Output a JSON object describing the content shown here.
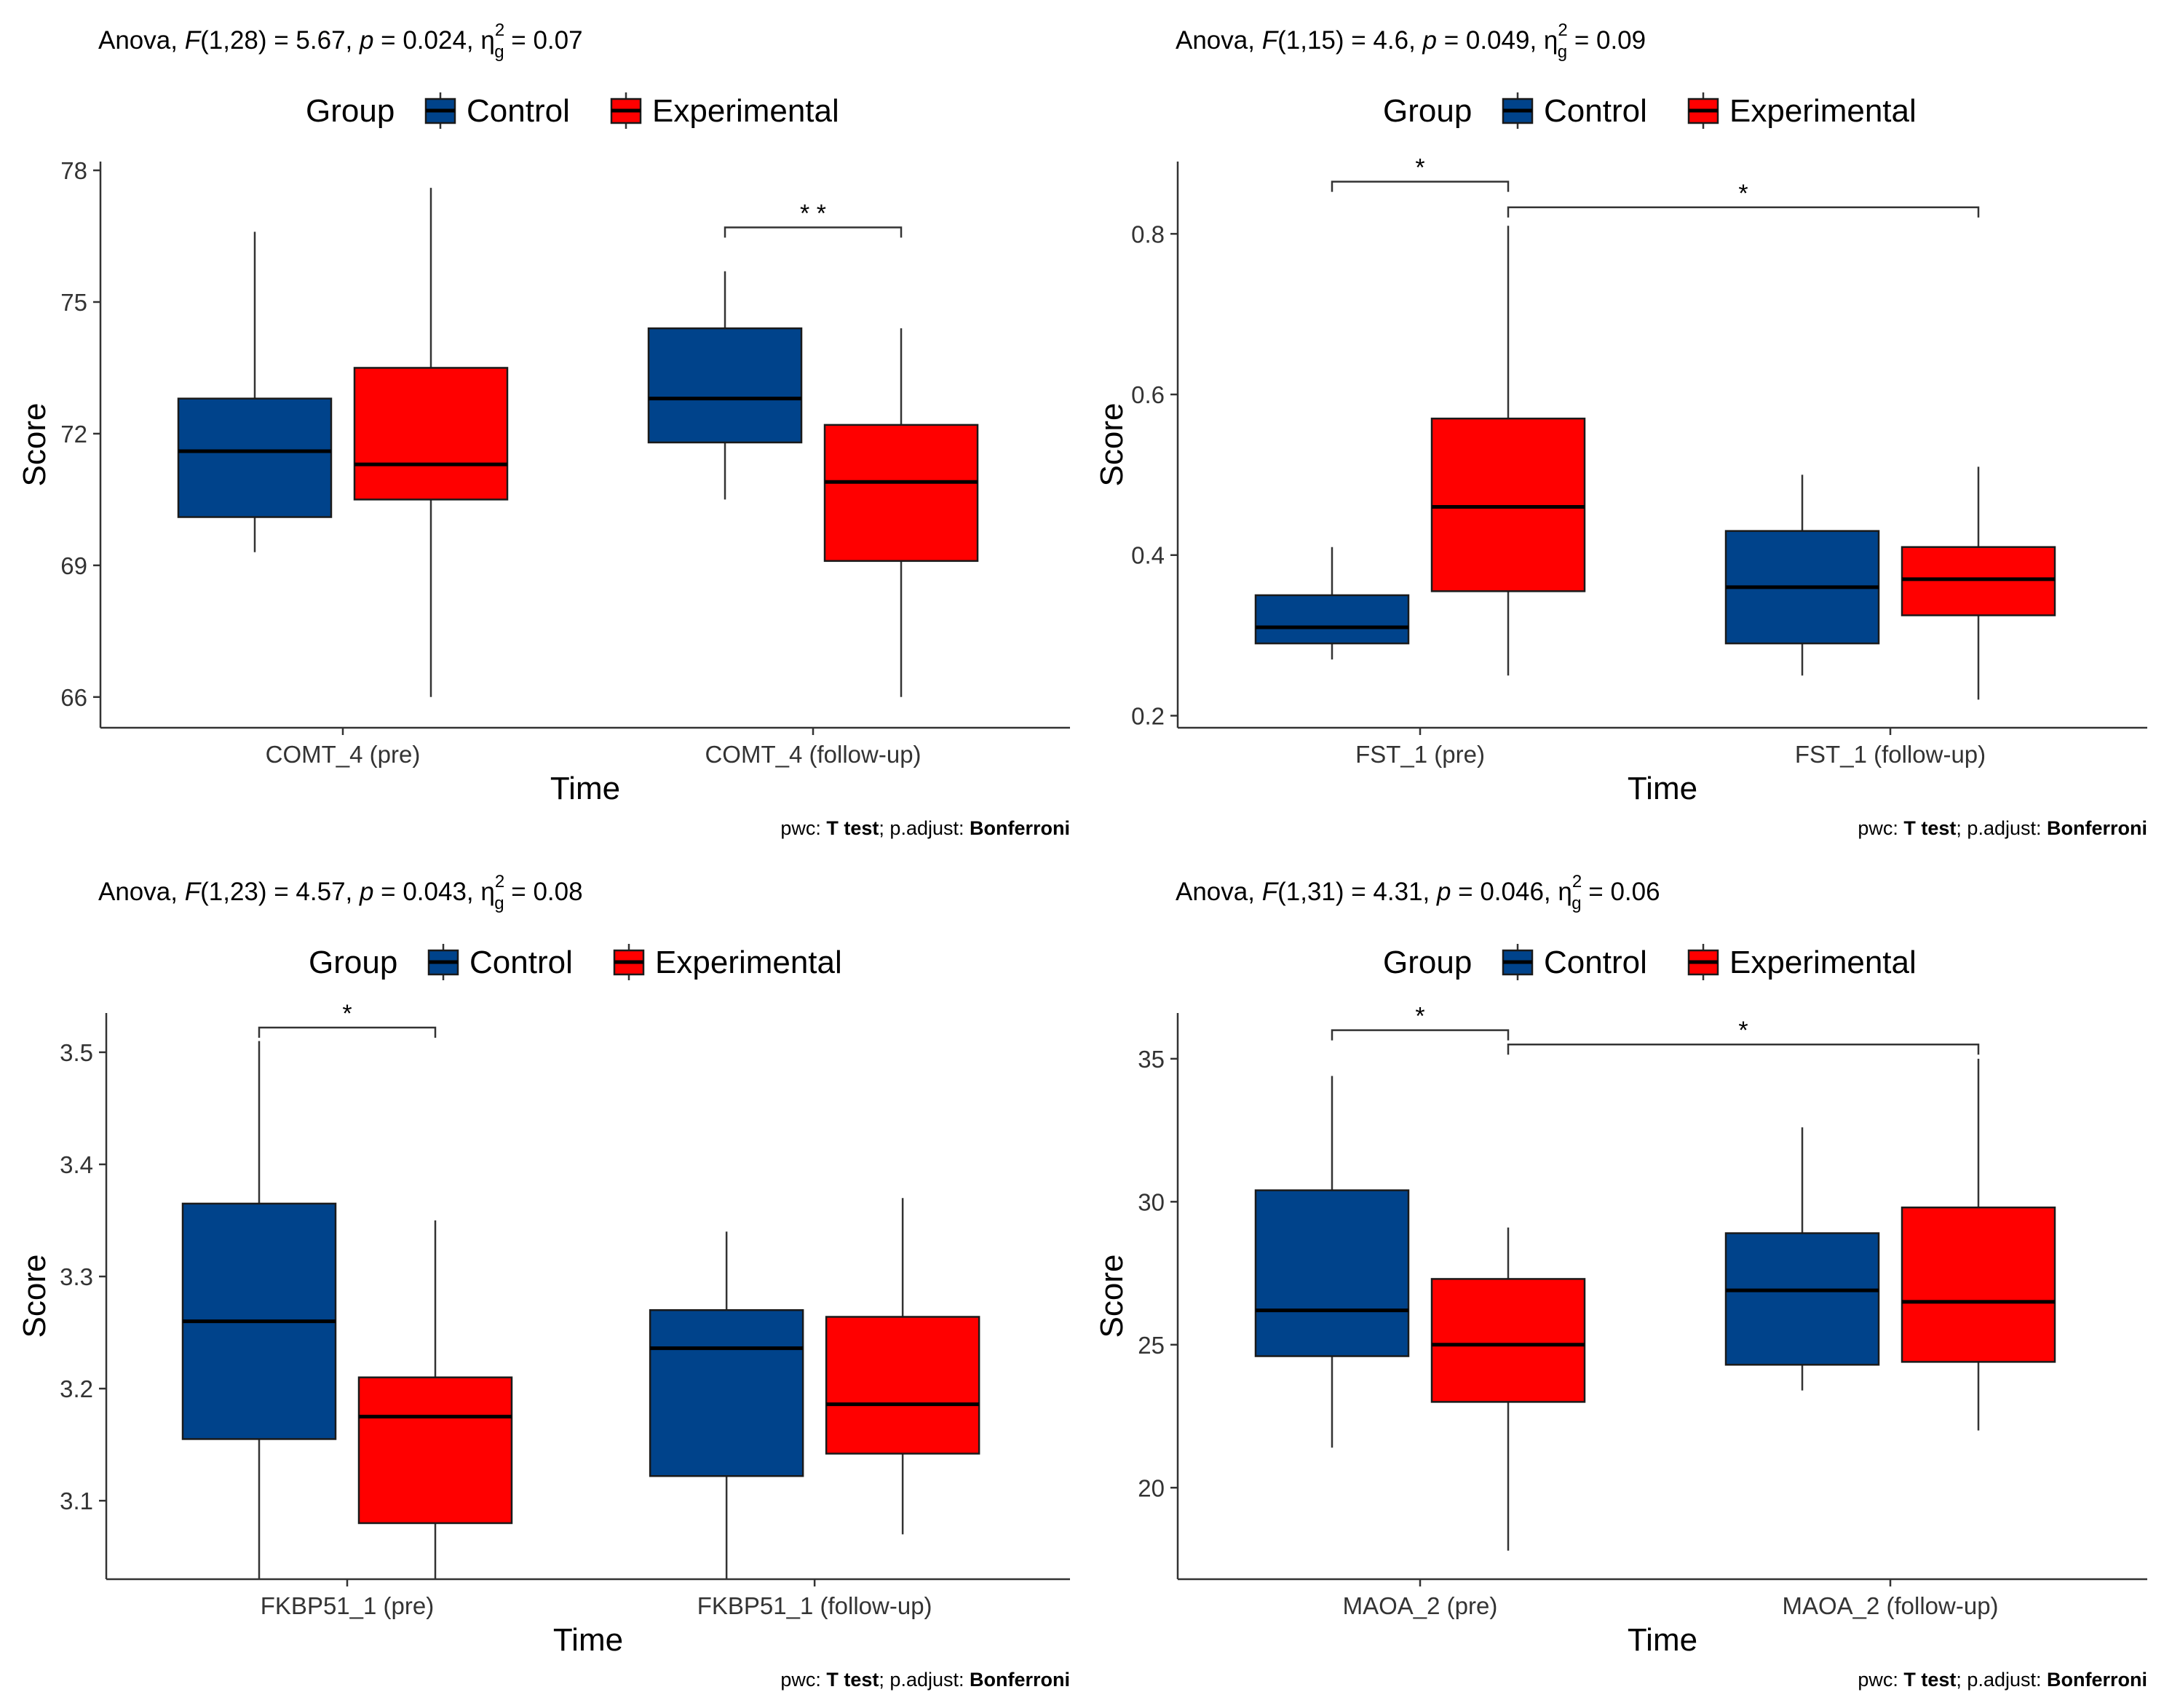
{
  "chart_data": [
    {
      "type": "boxplot",
      "anova_text": {
        "prefix": "Anova,",
        "stat": "F",
        "df": "(1,28) = 5.67,",
        "p_sym": "p",
        "p_val": "= 0.024,",
        "eta": "η",
        "eta_sup": "2",
        "eta_sub": "g",
        "eta_val": "= 0.07"
      },
      "legend": {
        "title": "Group",
        "labels": [
          "Control",
          "Experimental"
        ]
      },
      "xlabel": "Time",
      "ylabel": "Score",
      "categories": [
        "COMT_4 (pre)",
        "COMT_4 (follow-up)"
      ],
      "ylim": [
        65.3,
        78.2
      ],
      "yticks": [
        66,
        69,
        72,
        75,
        78
      ],
      "ytick_labels": [
        "66",
        "69",
        "72",
        "75",
        "78"
      ],
      "series": [
        {
          "name": "Control",
          "boxes": [
            {
              "min": 69.3,
              "q1": 70.1,
              "median": 71.6,
              "q3": 72.8,
              "max": 76.6
            },
            {
              "min": 70.5,
              "q1": 71.8,
              "median": 72.8,
              "q3": 74.4,
              "max": 75.7
            }
          ]
        },
        {
          "name": "Experimental",
          "boxes": [
            {
              "min": 66.0,
              "q1": 70.5,
              "median": 71.3,
              "q3": 73.5,
              "max": 77.6
            },
            {
              "min": 66.0,
              "q1": 69.1,
              "median": 70.9,
              "q3": 72.2,
              "max": 74.4
            }
          ]
        }
      ],
      "brackets": [
        {
          "label": "* *",
          "from": [
            1,
            0
          ],
          "to": [
            1,
            1
          ],
          "y": 76.7
        }
      ],
      "caption": {
        "pwc": "pwc:",
        "test": "T test",
        "sep": "; p.adjust:",
        "adjust": "Bonferroni"
      }
    },
    {
      "type": "boxplot",
      "anova_text": {
        "prefix": "Anova,",
        "stat": "F",
        "df": "(1,15) = 4.6,",
        "p_sym": "p",
        "p_val": "= 0.049,",
        "eta": "η",
        "eta_sup": "2",
        "eta_sub": "g",
        "eta_val": "= 0.09"
      },
      "legend": {
        "title": "Group",
        "labels": [
          "Control",
          "Experimental"
        ]
      },
      "xlabel": "Time",
      "ylabel": "Score",
      "categories": [
        "FST_1 (pre)",
        "FST_1 (follow-up)"
      ],
      "ylim": [
        0.185,
        0.89
      ],
      "yticks": [
        0.2,
        0.4,
        0.6,
        0.8
      ],
      "ytick_labels": [
        "0.2",
        "0.4",
        "0.6",
        "0.8"
      ],
      "series": [
        {
          "name": "Control",
          "boxes": [
            {
              "min": 0.27,
              "q1": 0.29,
              "median": 0.31,
              "q3": 0.35,
              "max": 0.41
            },
            {
              "min": 0.25,
              "q1": 0.29,
              "median": 0.36,
              "q3": 0.43,
              "max": 0.5
            }
          ]
        },
        {
          "name": "Experimental",
          "boxes": [
            {
              "min": 0.25,
              "q1": 0.355,
              "median": 0.46,
              "q3": 0.57,
              "max": 0.81
            },
            {
              "min": 0.22,
              "q1": 0.325,
              "median": 0.37,
              "q3": 0.41,
              "max": 0.51
            }
          ]
        }
      ],
      "brackets": [
        {
          "label": "*",
          "from": [
            0,
            0
          ],
          "to": [
            0,
            1
          ],
          "y": 0.865
        },
        {
          "label": "*",
          "from": [
            0,
            1
          ],
          "to": [
            1,
            1
          ],
          "y": 0.833
        }
      ],
      "caption": {
        "pwc": "pwc:",
        "test": "T test",
        "sep": "; p.adjust:",
        "adjust": "Bonferroni"
      }
    },
    {
      "type": "boxplot",
      "anova_text": {
        "prefix": "Anova,",
        "stat": "F",
        "df": "(1,23) = 4.57,",
        "p_sym": "p",
        "p_val": "= 0.043,",
        "eta": "η",
        "eta_sup": "2",
        "eta_sub": "g",
        "eta_val": "= 0.08"
      },
      "legend": {
        "title": "Group",
        "labels": [
          "Control",
          "Experimental"
        ]
      },
      "xlabel": "Time",
      "ylabel": "Score",
      "categories": [
        "FKBP51_1 (pre)",
        "FKBP51_1 (follow-up)"
      ],
      "ylim": [
        3.03,
        3.535
      ],
      "yticks": [
        3.1,
        3.2,
        3.3,
        3.4,
        3.5
      ],
      "ytick_labels": [
        "3.1",
        "3.2",
        "3.3",
        "3.4",
        "3.5"
      ],
      "series": [
        {
          "name": "Control",
          "boxes": [
            {
              "min": 3.03,
              "q1": 3.155,
              "median": 3.26,
              "q3": 3.365,
              "max": 3.51
            },
            {
              "min": 3.03,
              "q1": 3.122,
              "median": 3.236,
              "q3": 3.27,
              "max": 3.34
            }
          ]
        },
        {
          "name": "Experimental",
          "boxes": [
            {
              "min": 3.03,
              "q1": 3.08,
              "median": 3.175,
              "q3": 3.21,
              "max": 3.35
            },
            {
              "min": 3.07,
              "q1": 3.142,
              "median": 3.186,
              "q3": 3.264,
              "max": 3.37
            }
          ]
        }
      ],
      "brackets": [
        {
          "label": "*",
          "from": [
            0,
            0
          ],
          "to": [
            0,
            1
          ],
          "y": 3.522
        }
      ],
      "caption": {
        "pwc": "pwc:",
        "test": "T test",
        "sep": "; p.adjust:",
        "adjust": "Bonferroni"
      }
    },
    {
      "type": "boxplot",
      "anova_text": {
        "prefix": "Anova,",
        "stat": "F",
        "df": "(1,31) = 4.31,",
        "p_sym": "p",
        "p_val": "= 0.046,",
        "eta": "η",
        "eta_sup": "2",
        "eta_sub": "g",
        "eta_val": "= 0.06"
      },
      "legend": {
        "title": "Group",
        "labels": [
          "Control",
          "Experimental"
        ]
      },
      "xlabel": "Time",
      "ylabel": "Score",
      "categories": [
        "MAOA_2 (pre)",
        "MAOA_2 (follow-up)"
      ],
      "ylim": [
        16.8,
        36.6
      ],
      "yticks": [
        20,
        25,
        30,
        35
      ],
      "ytick_labels": [
        "20",
        "25",
        "30",
        "35"
      ],
      "series": [
        {
          "name": "Control",
          "boxes": [
            {
              "min": 21.4,
              "q1": 24.6,
              "median": 26.2,
              "q3": 30.4,
              "max": 34.4
            },
            {
              "min": 23.4,
              "q1": 24.3,
              "median": 26.9,
              "q3": 28.9,
              "max": 32.6
            }
          ]
        },
        {
          "name": "Experimental",
          "boxes": [
            {
              "min": 17.8,
              "q1": 23.0,
              "median": 25.0,
              "q3": 27.3,
              "max": 29.1
            },
            {
              "min": 22.0,
              "q1": 24.4,
              "median": 26.5,
              "q3": 29.8,
              "max": 35.0
            }
          ]
        }
      ],
      "brackets": [
        {
          "label": "*",
          "from": [
            0,
            0
          ],
          "to": [
            0,
            1
          ],
          "y": 36.0
        },
        {
          "label": "*",
          "from": [
            0,
            1
          ],
          "to": [
            1,
            1
          ],
          "y": 35.5
        }
      ],
      "caption": {
        "pwc": "pwc:",
        "test": "T test",
        "sep": "; p.adjust:",
        "adjust": "Bonferroni"
      }
    }
  ],
  "colors": {
    "control": "#00438b",
    "experimental": "#ff0000"
  }
}
